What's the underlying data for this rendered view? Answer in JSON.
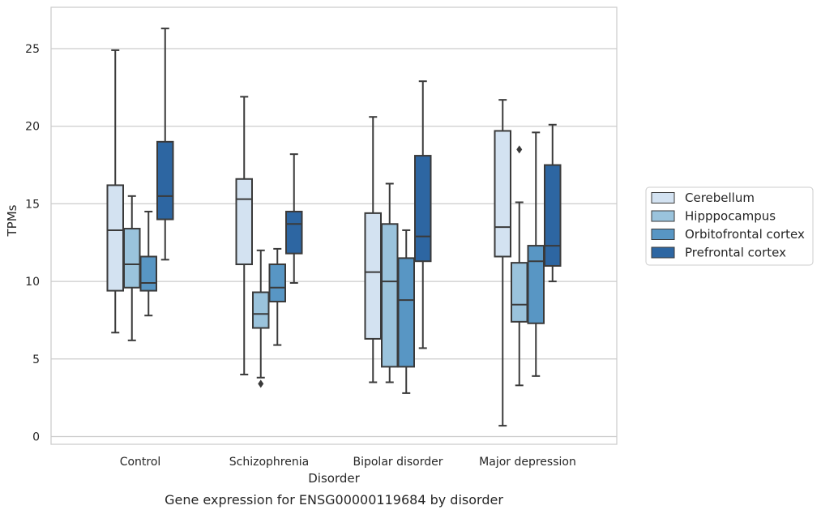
{
  "chart_data": {
    "type": "box",
    "caption": "Gene expression for ENSG00000119684 by disorder",
    "xlabel": "Disorder",
    "ylabel": "TPMs",
    "ylim": [
      -0.4,
      27.5
    ],
    "yticks": [
      0,
      5,
      10,
      15,
      20,
      25
    ],
    "grid": true,
    "legend_position": "right",
    "categories": [
      "Control",
      "Schizophrenia",
      "Bipolar disorder",
      "Major depression"
    ],
    "series": [
      {
        "name": "Cerebellum",
        "color": "#d3e2f1",
        "boxes": [
          {
            "whislo": 6.7,
            "q1": 9.4,
            "med": 13.3,
            "q3": 16.2,
            "whishi": 24.9,
            "fliers": []
          },
          {
            "whislo": 4.0,
            "q1": 11.1,
            "med": 15.3,
            "q3": 16.6,
            "whishi": 21.9,
            "fliers": []
          },
          {
            "whislo": 3.5,
            "q1": 6.3,
            "med": 10.6,
            "q3": 14.4,
            "whishi": 20.6,
            "fliers": []
          },
          {
            "whislo": 0.7,
            "q1": 11.6,
            "med": 13.5,
            "q3": 19.7,
            "whishi": 21.7,
            "fliers": []
          }
        ]
      },
      {
        "name": "Hipppocampus",
        "color": "#9ac3dc",
        "boxes": [
          {
            "whislo": 6.2,
            "q1": 9.6,
            "med": 11.1,
            "q3": 13.4,
            "whishi": 15.5,
            "fliers": []
          },
          {
            "whislo": 3.8,
            "q1": 7.0,
            "med": 7.9,
            "q3": 9.3,
            "whishi": 12.0,
            "fliers": [
              3.4
            ]
          },
          {
            "whislo": 3.5,
            "q1": 4.5,
            "med": 10.0,
            "q3": 13.7,
            "whishi": 16.3,
            "fliers": []
          },
          {
            "whislo": 3.3,
            "q1": 7.4,
            "med": 8.5,
            "q3": 11.2,
            "whishi": 15.1,
            "fliers": [
              18.5
            ]
          }
        ]
      },
      {
        "name": "Orbitofrontal cortex",
        "color": "#5896c4",
        "boxes": [
          {
            "whislo": 7.8,
            "q1": 9.4,
            "med": 9.9,
            "q3": 11.6,
            "whishi": 14.5,
            "fliers": []
          },
          {
            "whislo": 5.9,
            "q1": 8.7,
            "med": 9.6,
            "q3": 11.1,
            "whishi": 12.1,
            "fliers": []
          },
          {
            "whislo": 2.8,
            "q1": 4.5,
            "med": 8.8,
            "q3": 11.5,
            "whishi": 13.3,
            "fliers": []
          },
          {
            "whislo": 3.9,
            "q1": 7.3,
            "med": 11.3,
            "q3": 12.3,
            "whishi": 19.6,
            "fliers": []
          }
        ]
      },
      {
        "name": "Prefrontal cortex",
        "color": "#2d66a2",
        "boxes": [
          {
            "whislo": 11.4,
            "q1": 14.0,
            "med": 15.5,
            "q3": 19.0,
            "whishi": 26.3,
            "fliers": []
          },
          {
            "whislo": 9.9,
            "q1": 11.8,
            "med": 13.7,
            "q3": 14.5,
            "whishi": 18.2,
            "fliers": []
          },
          {
            "whislo": 5.7,
            "q1": 11.3,
            "med": 12.9,
            "q3": 18.1,
            "whishi": 22.9,
            "fliers": []
          },
          {
            "whislo": 10.0,
            "q1": 11.0,
            "med": 12.3,
            "q3": 17.5,
            "whishi": 20.1,
            "fliers": []
          }
        ]
      }
    ]
  }
}
